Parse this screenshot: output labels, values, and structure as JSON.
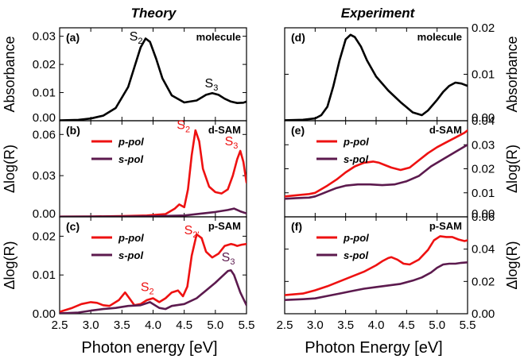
{
  "figure": {
    "left_title": "Theory",
    "right_title": "Experiment",
    "left_xlabel": "Photon energy [eV]",
    "right_xlabel": "Photon Energy [eV]",
    "x_ticks": [
      "2.5",
      "3.0",
      "3.5",
      "4.0",
      "4.5",
      "5.0",
      "5.5"
    ],
    "colors": {
      "p_pol": "#ee1111",
      "s_pol": "#5c1a4e",
      "molecule": "#000000"
    }
  },
  "chart_data": [
    {
      "id": "a",
      "type": "line",
      "tag": "(a)",
      "corner_label": "molecule",
      "ylabel": "Absorbance",
      "xlim": [
        2.5,
        5.5
      ],
      "ylim": [
        0,
        0.033
      ],
      "yticks": [
        "0.00",
        "0.01",
        "0.02",
        "0.03"
      ],
      "ytick_values": [
        0,
        0.01,
        0.02,
        0.03
      ],
      "annotations": [
        {
          "main": "S",
          "sub": "2",
          "x": 3.62,
          "y": 0.0285,
          "color": "#000000"
        },
        {
          "main": "S",
          "sub": "3",
          "x": 4.83,
          "y": 0.0118,
          "color": "#000000"
        }
      ],
      "series": [
        {
          "name": "molecule",
          "color": "#000000",
          "x": [
            2.5,
            2.8,
            3.0,
            3.2,
            3.4,
            3.6,
            3.7,
            3.8,
            3.88,
            3.95,
            4.05,
            4.15,
            4.3,
            4.5,
            4.7,
            4.85,
            4.95,
            5.05,
            5.15,
            5.25,
            5.35,
            5.45,
            5.5
          ],
          "y": [
            0.0001,
            0.0003,
            0.0008,
            0.0018,
            0.0045,
            0.012,
            0.019,
            0.026,
            0.0292,
            0.028,
            0.022,
            0.015,
            0.009,
            0.0065,
            0.0072,
            0.0092,
            0.0098,
            0.0092,
            0.0078,
            0.0068,
            0.0063,
            0.0064,
            0.0068
          ]
        }
      ]
    },
    {
      "id": "b",
      "type": "line",
      "tag": "(b)",
      "corner_label": "d-SAM",
      "ylabel": "Δlog(R)",
      "xlim": [
        2.5,
        5.5
      ],
      "ylim": [
        0,
        0.07
      ],
      "yticks": [
        "0.00",
        "0.03",
        "0.06"
      ],
      "ytick_values": [
        0,
        0.03,
        0.06
      ],
      "legend": [
        {
          "label": "p-pol",
          "color": "#ee1111"
        },
        {
          "label": "s-pol",
          "color": "#5c1a4e"
        }
      ],
      "annotations": [
        {
          "main": "S",
          "sub": "2",
          "x": 4.38,
          "y": 0.064,
          "color": "#ee1111"
        },
        {
          "main": "S",
          "sub": "3",
          "x": 5.15,
          "y": 0.052,
          "color": "#ee1111"
        }
      ],
      "series": [
        {
          "name": "p-pol",
          "color": "#ee1111",
          "x": [
            2.5,
            3.0,
            3.5,
            3.9,
            4.2,
            4.35,
            4.42,
            4.5,
            4.56,
            4.62,
            4.68,
            4.74,
            4.8,
            4.9,
            5.0,
            5.1,
            5.2,
            5.28,
            5.35,
            5.4,
            5.45,
            5.5
          ],
          "y": [
            0.0002,
            0.0003,
            0.0005,
            0.001,
            0.002,
            0.006,
            0.009,
            0.007,
            0.02,
            0.045,
            0.063,
            0.055,
            0.035,
            0.022,
            0.018,
            0.017,
            0.02,
            0.03,
            0.042,
            0.048,
            0.04,
            0.025
          ]
        },
        {
          "name": "s-pol",
          "color": "#5c1a4e",
          "x": [
            2.5,
            3.5,
            4.0,
            4.5,
            4.8,
            5.0,
            5.2,
            5.3,
            5.4,
            5.5
          ],
          "y": [
            0.0001,
            0.0002,
            0.0004,
            0.001,
            0.0025,
            0.0035,
            0.005,
            0.006,
            0.004,
            0.0025
          ]
        }
      ]
    },
    {
      "id": "c",
      "type": "line",
      "tag": "(c)",
      "corner_label": "p-SAM",
      "ylabel": "Δlog(R)",
      "xlim": [
        2.5,
        5.5
      ],
      "ylim": [
        0,
        0.025
      ],
      "yticks": [
        "0.00",
        "0.01",
        "0.02"
      ],
      "ytick_values": [
        0,
        0.01,
        0.02
      ],
      "legend": [
        {
          "label": "p-pol",
          "color": "#ee1111"
        },
        {
          "label": "s-pol",
          "color": "#5c1a4e"
        }
      ],
      "annotations": [
        {
          "main": "S",
          "sub": "2'",
          "x": 4.5,
          "y": 0.0205,
          "color": "#ee1111"
        },
        {
          "main": "S",
          "sub": "2",
          "x": 3.8,
          "y": 0.0058,
          "color": "#ee1111"
        },
        {
          "main": "S",
          "sub": "3",
          "x": 5.1,
          "y": 0.0135,
          "color": "#5c1a4e"
        }
      ],
      "series": [
        {
          "name": "p-pol",
          "color": "#ee1111",
          "x": [
            2.5,
            2.7,
            2.85,
            3.0,
            3.1,
            3.2,
            3.3,
            3.45,
            3.55,
            3.62,
            3.7,
            3.8,
            3.9,
            4.0,
            4.1,
            4.2,
            4.3,
            4.4,
            4.48,
            4.55,
            4.62,
            4.7,
            4.78,
            4.85,
            4.95,
            5.05,
            5.15,
            5.25,
            5.3,
            5.35,
            5.42,
            5.5
          ],
          "y": [
            0.0005,
            0.0015,
            0.0025,
            0.003,
            0.0028,
            0.0022,
            0.002,
            0.0035,
            0.0055,
            0.004,
            0.0022,
            0.0025,
            0.0035,
            0.004,
            0.003,
            0.004,
            0.0055,
            0.006,
            0.0045,
            0.007,
            0.015,
            0.0205,
            0.0195,
            0.016,
            0.0145,
            0.0155,
            0.0175,
            0.018,
            0.0178,
            0.0175,
            0.0178,
            0.018
          ]
        },
        {
          "name": "s-pol",
          "color": "#5c1a4e",
          "x": [
            2.5,
            2.8,
            3.0,
            3.2,
            3.4,
            3.6,
            3.8,
            3.95,
            4.1,
            4.2,
            4.3,
            4.5,
            4.7,
            4.85,
            5.0,
            5.1,
            5.2,
            5.25,
            5.3,
            5.4,
            5.5
          ],
          "y": [
            0.0001,
            0.0003,
            0.0008,
            0.0012,
            0.0015,
            0.002,
            0.0022,
            0.003,
            0.0015,
            0.0012,
            0.002,
            0.0025,
            0.004,
            0.006,
            0.008,
            0.0095,
            0.011,
            0.0112,
            0.01,
            0.0055,
            0.0022
          ]
        }
      ]
    },
    {
      "id": "d",
      "type": "line",
      "tag": "(d)",
      "corner_label": "molecule",
      "ylabel": "Absorbance",
      "xlim": [
        2.5,
        5.5
      ],
      "ylim": [
        0,
        0.02
      ],
      "yticks": [
        "0.00",
        "0.01",
        "0.02"
      ],
      "ytick_values": [
        0,
        0.01,
        0.02
      ],
      "series": [
        {
          "name": "molecule",
          "color": "#000000",
          "x": [
            2.5,
            2.8,
            3.0,
            3.1,
            3.2,
            3.3,
            3.4,
            3.5,
            3.58,
            3.65,
            3.75,
            3.85,
            4.0,
            4.2,
            4.4,
            4.6,
            4.75,
            4.85,
            5.0,
            5.1,
            5.2,
            5.3,
            5.4,
            5.5
          ],
          "y": [
            0.0001,
            0.0002,
            0.0005,
            0.0012,
            0.003,
            0.0075,
            0.013,
            0.0175,
            0.0185,
            0.018,
            0.016,
            0.013,
            0.0095,
            0.0065,
            0.004,
            0.0018,
            0.0012,
            0.0022,
            0.0045,
            0.0062,
            0.0075,
            0.0082,
            0.008,
            0.0075
          ]
        }
      ]
    },
    {
      "id": "e",
      "type": "line",
      "tag": "(e)",
      "corner_label": "d-SAM",
      "ylabel": "Δlog(R)",
      "xlim": [
        2.5,
        5.5
      ],
      "ylim": [
        0,
        0.04
      ],
      "yticks": [
        "0.00",
        "0.01",
        "0.02",
        "0.03",
        "0.04"
      ],
      "ytick_values": [
        0,
        0.01,
        0.02,
        0.03,
        0.04
      ],
      "legend": [
        {
          "label": "p-pol",
          "color": "#ee1111"
        },
        {
          "label": "s-pol",
          "color": "#5c1a4e"
        }
      ],
      "series": [
        {
          "name": "p-pol",
          "color": "#ee1111",
          "x": [
            2.5,
            2.7,
            2.9,
            3.0,
            3.1,
            3.2,
            3.35,
            3.5,
            3.65,
            3.8,
            3.95,
            4.05,
            4.15,
            4.25,
            4.4,
            4.55,
            4.7,
            4.85,
            5.0,
            5.15,
            5.3,
            5.45,
            5.5
          ],
          "y": [
            0.0085,
            0.009,
            0.0095,
            0.01,
            0.0115,
            0.013,
            0.0155,
            0.0185,
            0.021,
            0.0225,
            0.023,
            0.0225,
            0.0215,
            0.0205,
            0.0195,
            0.0205,
            0.0235,
            0.0265,
            0.029,
            0.031,
            0.033,
            0.035,
            0.036
          ]
        },
        {
          "name": "s-pol",
          "color": "#5c1a4e",
          "x": [
            2.5,
            2.7,
            2.9,
            3.0,
            3.1,
            3.2,
            3.35,
            3.5,
            3.7,
            3.9,
            4.1,
            4.3,
            4.5,
            4.7,
            4.9,
            5.1,
            5.3,
            5.5
          ],
          "y": [
            0.0075,
            0.0078,
            0.008,
            0.0085,
            0.0095,
            0.0105,
            0.012,
            0.013,
            0.0135,
            0.0135,
            0.0132,
            0.0135,
            0.0148,
            0.017,
            0.021,
            0.024,
            0.027,
            0.03
          ]
        }
      ]
    },
    {
      "id": "f",
      "type": "line",
      "tag": "(f)",
      "corner_label": "p-SAM",
      "ylabel": "Δlog(R)",
      "xlim": [
        2.5,
        5.5
      ],
      "ylim": [
        0,
        0.06
      ],
      "yticks": [
        "0.00",
        "0.02",
        "0.04",
        "0.06"
      ],
      "ytick_values": [
        0,
        0.02,
        0.04,
        0.06
      ],
      "legend": [
        {
          "label": "p-pol",
          "color": "#ee1111"
        },
        {
          "label": "s-pol",
          "color": "#5c1a4e"
        }
      ],
      "series": [
        {
          "name": "p-pol",
          "color": "#ee1111",
          "x": [
            2.5,
            2.8,
            3.0,
            3.2,
            3.4,
            3.6,
            3.8,
            4.0,
            4.1,
            4.2,
            4.25,
            4.35,
            4.45,
            4.55,
            4.7,
            4.85,
            4.95,
            5.05,
            5.15,
            5.25,
            5.35,
            5.45,
            5.5
          ],
          "y": [
            0.0115,
            0.0125,
            0.0145,
            0.017,
            0.02,
            0.023,
            0.026,
            0.03,
            0.0325,
            0.0345,
            0.035,
            0.0335,
            0.031,
            0.0305,
            0.0335,
            0.0395,
            0.0455,
            0.048,
            0.0475,
            0.0475,
            0.046,
            0.045,
            0.0455
          ]
        },
        {
          "name": "s-pol",
          "color": "#5c1a4e",
          "x": [
            2.5,
            2.8,
            3.0,
            3.2,
            3.4,
            3.6,
            3.8,
            4.0,
            4.2,
            4.4,
            4.6,
            4.75,
            4.9,
            5.0,
            5.1,
            5.2,
            5.3,
            5.4,
            5.5
          ],
          "y": [
            0.0085,
            0.009,
            0.0095,
            0.011,
            0.0125,
            0.014,
            0.0155,
            0.0165,
            0.0175,
            0.0185,
            0.0205,
            0.0225,
            0.0255,
            0.0285,
            0.0305,
            0.031,
            0.031,
            0.0315,
            0.0318
          ]
        }
      ]
    }
  ]
}
